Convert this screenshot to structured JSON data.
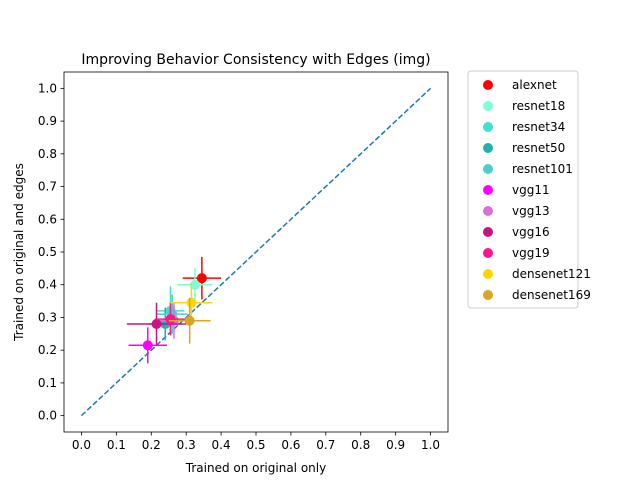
{
  "chart_data": {
    "type": "scatter",
    "title": "Improving Behavior Consistency with Edges (img)",
    "xlabel": "Trained on original only",
    "ylabel": "Trained on original and edges",
    "xlim": [
      -0.05,
      1.05
    ],
    "ylim": [
      -0.05,
      1.05
    ],
    "xticks": [
      "0.0",
      "0.1",
      "0.2",
      "0.3",
      "0.4",
      "0.5",
      "0.6",
      "0.7",
      "0.8",
      "0.9",
      "1.0"
    ],
    "yticks": [
      "0.0",
      "0.1",
      "0.2",
      "0.3",
      "0.4",
      "0.5",
      "0.6",
      "0.7",
      "0.8",
      "0.9",
      "1.0"
    ],
    "grid": false,
    "legend_position": "outside-right",
    "reference_line": {
      "x": [
        0.0,
        1.0
      ],
      "y": [
        0.0,
        1.0
      ],
      "style": "dashed",
      "color": "#1f77b4"
    },
    "series": [
      {
        "name": "alexnet",
        "color": "#ff0000",
        "x": 0.345,
        "y": 0.42,
        "xerr": 0.055,
        "yerr": 0.065
      },
      {
        "name": "resnet18",
        "color": "#7fffd4",
        "x": 0.325,
        "y": 0.4,
        "xerr": 0.05,
        "yerr": 0.05
      },
      {
        "name": "resnet34",
        "color": "#40e0d0",
        "x": 0.255,
        "y": 0.32,
        "xerr": 0.04,
        "yerr": 0.075
      },
      {
        "name": "resnet50",
        "color": "#20b2aa",
        "x": 0.24,
        "y": 0.28,
        "xerr": 0.045,
        "yerr": 0.05
      },
      {
        "name": "resnet101",
        "color": "#48d1cc",
        "x": 0.26,
        "y": 0.31,
        "xerr": 0.045,
        "yerr": 0.06
      },
      {
        "name": "vgg11",
        "color": "#ff00ff",
        "x": 0.19,
        "y": 0.215,
        "xerr": 0.055,
        "yerr": 0.055
      },
      {
        "name": "vgg13",
        "color": "#da70d6",
        "x": 0.265,
        "y": 0.29,
        "xerr": 0.045,
        "yerr": 0.055
      },
      {
        "name": "vgg16",
        "color": "#c71585",
        "x": 0.215,
        "y": 0.28,
        "xerr": 0.085,
        "yerr": 0.065
      },
      {
        "name": "vgg19",
        "color": "#ff1493",
        "x": 0.255,
        "y": 0.295,
        "xerr": 0.045,
        "yerr": 0.05
      },
      {
        "name": "densenet121",
        "color": "#ffd700",
        "x": 0.315,
        "y": 0.345,
        "xerr": 0.06,
        "yerr": 0.06
      },
      {
        "name": "densenet169",
        "color": "#daa520",
        "x": 0.31,
        "y": 0.29,
        "xerr": 0.06,
        "yerr": 0.07
      }
    ]
  }
}
